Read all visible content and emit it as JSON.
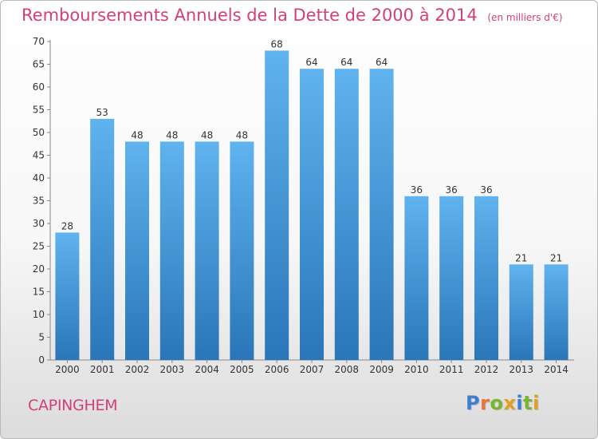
{
  "chart_data": {
    "type": "bar",
    "title": "Remboursements Annuels de la Dette de 2000 à 2014",
    "subtitle": "(en milliers d'€)",
    "categories": [
      "2000",
      "2001",
      "2002",
      "2003",
      "2004",
      "2005",
      "2006",
      "2007",
      "2008",
      "2009",
      "2010",
      "2011",
      "2012",
      "2013",
      "2014"
    ],
    "values": [
      28,
      53,
      48,
      48,
      48,
      48,
      68,
      64,
      64,
      64,
      36,
      36,
      36,
      21,
      21
    ],
    "ylim": [
      0,
      70
    ],
    "yticks": [
      0,
      5,
      10,
      15,
      20,
      25,
      30,
      35,
      40,
      45,
      50,
      55,
      60,
      65,
      70
    ],
    "xlabel": "",
    "ylabel": "",
    "grid": false,
    "bar_color": "#4a9fe0"
  },
  "footer": {
    "city": "CAPINGHEM",
    "brand": "Proxiti"
  },
  "colors": {
    "title": "#d0407a",
    "bar_light": "#5fb3ee",
    "bar_dark": "#2a76b8",
    "logo": [
      "#3a7fd0",
      "#e8743a",
      "#7ab52e",
      "#e0a020",
      "#3a7fd0",
      "#7ab52e",
      "#e0a020"
    ]
  }
}
